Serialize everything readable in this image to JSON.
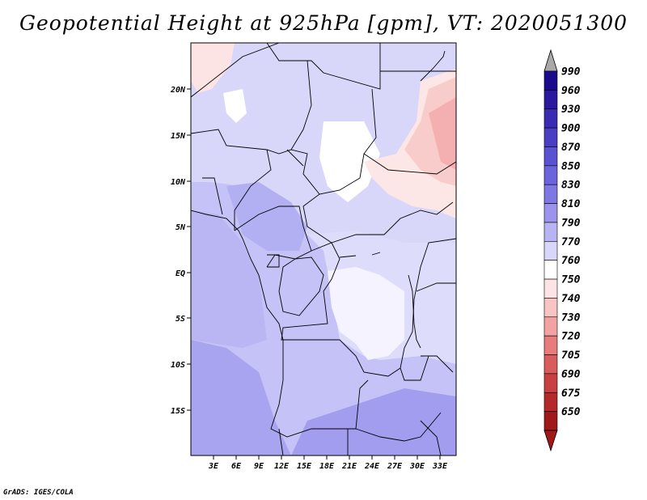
{
  "title": "Geopotential Height at 925hPa [gpm], VT: 2020051300",
  "credit": "GrADS: IGES/COLA",
  "map": {
    "variable": "geopotential height",
    "level": "925hPa",
    "units": "gpm",
    "valid_time": "2020051300",
    "lat_range": [
      -20,
      25
    ],
    "lon_range": [
      0,
      35
    ],
    "lat_ticks": [
      "20N",
      "15N",
      "10N",
      "5N",
      "EQ",
      "5S",
      "10S",
      "15S"
    ],
    "lon_ticks": [
      "3E",
      "6E",
      "9E",
      "12E",
      "15E",
      "18E",
      "21E",
      "24E",
      "27E",
      "30E",
      "33E"
    ]
  },
  "colorbar": {
    "levels": [
      "990",
      "960",
      "930",
      "900",
      "870",
      "850",
      "830",
      "810",
      "790",
      "770",
      "760",
      "750",
      "740",
      "730",
      "720",
      "705",
      "690",
      "675",
      "650"
    ],
    "colors": [
      "#1a0a8c",
      "#2a1a9e",
      "#3a2cb2",
      "#4a3ec4",
      "#5a52d2",
      "#6c64dc",
      "#7f78e4",
      "#9a94ec",
      "#b8b4f4",
      "#d8d6fa",
      "#ffffff",
      "#fde4e4",
      "#f8c4c4",
      "#f2a2a2",
      "#e67c7c",
      "#d95c5c",
      "#c94040",
      "#b42a2a",
      "#a01818"
    ],
    "top_arrow_color": "#a9a9a9",
    "bottom_arrow_color": "#a01818"
  }
}
